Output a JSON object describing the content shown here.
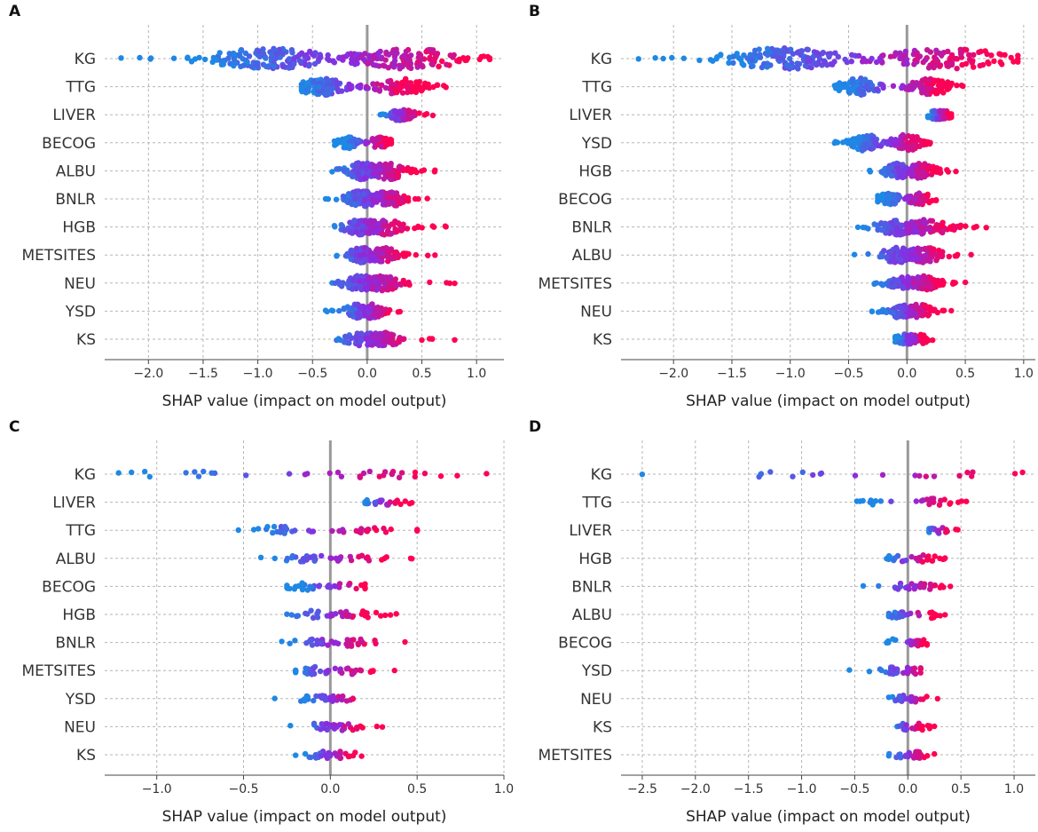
{
  "colors": {
    "low": "#1e88e5",
    "mid": "#8a2be2",
    "high": "#ff0052",
    "zero_line": "#999999",
    "grid": "#b5b5b5"
  },
  "chart_data": [
    {
      "type": "scatter",
      "panel_label": "A",
      "xlabel": "SHAP value (impact on model output)",
      "xlim": [
        -2.4,
        1.25
      ],
      "xticks": [
        -2.0,
        -1.5,
        -1.0,
        -0.5,
        0.0,
        0.5,
        1.0
      ],
      "tick_labels": [
        "−2.0",
        "−1.5",
        "−1.0",
        "−0.5",
        "0.0",
        "0.5",
        "1.0"
      ],
      "features": [
        {
          "name": "KG",
          "min": -2.25,
          "max": 1.12,
          "density": 280,
          "low_center": -0.9,
          "high_center": 0.35,
          "split": -0.2
        },
        {
          "name": "TTG",
          "min": -0.6,
          "max": 0.72,
          "density": 170,
          "low_center": -0.42,
          "high_center": 0.3,
          "split": -0.1
        },
        {
          "name": "LIVER",
          "min": 0.12,
          "max": 0.6,
          "density": 90,
          "low_center": 0.3,
          "high_center": 0.32,
          "split": 0.3
        },
        {
          "name": "BECOG",
          "min": -0.3,
          "max": 0.22,
          "density": 90,
          "low_center": -0.18,
          "high_center": 0.12,
          "split": 0.0
        },
        {
          "name": "ALBU",
          "min": -0.32,
          "max": 0.62,
          "density": 170,
          "low_center": -0.05,
          "high_center": 0.2,
          "split": 0.05
        },
        {
          "name": "BNLR",
          "min": -0.38,
          "max": 0.55,
          "density": 160,
          "low_center": -0.05,
          "high_center": 0.2,
          "split": 0.05
        },
        {
          "name": "HGB",
          "min": -0.3,
          "max": 0.72,
          "density": 150,
          "low_center": -0.05,
          "high_center": 0.15,
          "split": 0.0
        },
        {
          "name": "METSITES",
          "min": -0.28,
          "max": 0.62,
          "density": 140,
          "low_center": -0.05,
          "high_center": 0.15,
          "split": 0.0
        },
        {
          "name": "NEU",
          "min": -0.32,
          "max": 0.8,
          "density": 140,
          "low_center": -0.05,
          "high_center": 0.15,
          "split": 0.0
        },
        {
          "name": "YSD",
          "min": -0.38,
          "max": 0.3,
          "density": 130,
          "low_center": -0.1,
          "high_center": 0.05,
          "split": 0.0
        },
        {
          "name": "KS",
          "min": -0.28,
          "max": 0.8,
          "density": 120,
          "low_center": -0.03,
          "high_center": 0.15,
          "split": 0.05
        }
      ]
    },
    {
      "type": "scatter",
      "panel_label": "B",
      "xlabel": "SHAP value (impact on model output)",
      "xlim": [
        -2.45,
        1.1
      ],
      "xticks": [
        -2.0,
        -1.5,
        -1.0,
        -0.5,
        0.0,
        0.5,
        1.0
      ],
      "tick_labels": [
        "−2.0",
        "−1.5",
        "−1.0",
        "−0.5",
        "0.0",
        "0.5",
        "1.0"
      ],
      "features": [
        {
          "name": "KG",
          "min": -2.3,
          "max": 0.95,
          "density": 260,
          "low_center": -1.05,
          "high_center": 0.35,
          "split": -0.4
        },
        {
          "name": "TTG",
          "min": -0.62,
          "max": 0.48,
          "density": 160,
          "low_center": -0.4,
          "high_center": 0.2,
          "split": -0.1
        },
        {
          "name": "LIVER",
          "min": 0.18,
          "max": 0.38,
          "density": 70,
          "low_center": 0.28,
          "high_center": 0.28,
          "split": 0.28
        },
        {
          "name": "YSD",
          "min": -0.62,
          "max": 0.2,
          "density": 160,
          "low_center": -0.35,
          "high_center": 0.0,
          "split": -0.15
        },
        {
          "name": "HGB",
          "min": -0.32,
          "max": 0.42,
          "density": 140,
          "low_center": -0.08,
          "high_center": 0.12,
          "split": 0.0
        },
        {
          "name": "BECOG",
          "min": -0.25,
          "max": 0.25,
          "density": 90,
          "low_center": -0.15,
          "high_center": 0.12,
          "split": 0.0
        },
        {
          "name": "BNLR",
          "min": -0.42,
          "max": 0.68,
          "density": 150,
          "low_center": -0.08,
          "high_center": 0.2,
          "split": 0.0
        },
        {
          "name": "ALBU",
          "min": -0.45,
          "max": 0.55,
          "density": 140,
          "low_center": -0.08,
          "high_center": 0.15,
          "split": 0.0
        },
        {
          "name": "METSITES",
          "min": -0.28,
          "max": 0.5,
          "density": 130,
          "low_center": -0.05,
          "high_center": 0.15,
          "split": 0.0
        },
        {
          "name": "NEU",
          "min": -0.3,
          "max": 0.38,
          "density": 120,
          "low_center": -0.05,
          "high_center": 0.1,
          "split": 0.0
        },
        {
          "name": "KS",
          "min": -0.1,
          "max": 0.22,
          "density": 70,
          "low_center": 0.0,
          "high_center": 0.08,
          "split": 0.03
        }
      ]
    },
    {
      "type": "scatter",
      "panel_label": "C",
      "xlabel": "SHAP value (impact on model output)",
      "xlim": [
        -1.3,
        1.0
      ],
      "xticks": [
        -1.0,
        -0.5,
        0.0,
        0.5,
        1.0
      ],
      "tick_labels": [
        "−1.0",
        "−0.5",
        "0.0",
        "0.5",
        "1.0"
      ],
      "features": [
        {
          "name": "KG",
          "min": -1.22,
          "max": 0.9,
          "density": 35,
          "low_center": -0.8,
          "high_center": 0.3,
          "split": -0.2
        },
        {
          "name": "LIVER",
          "min": 0.2,
          "max": 0.47,
          "density": 22,
          "low_center": 0.3,
          "high_center": 0.33,
          "split": 0.3
        },
        {
          "name": "TTG",
          "min": -0.53,
          "max": 0.5,
          "density": 40,
          "low_center": -0.3,
          "high_center": 0.2,
          "split": -0.05
        },
        {
          "name": "ALBU",
          "min": -0.4,
          "max": 0.47,
          "density": 38,
          "low_center": -0.15,
          "high_center": 0.15,
          "split": 0.0
        },
        {
          "name": "BECOG",
          "min": -0.25,
          "max": 0.2,
          "density": 35,
          "low_center": -0.15,
          "high_center": 0.12,
          "split": 0.0
        },
        {
          "name": "HGB",
          "min": -0.25,
          "max": 0.38,
          "density": 40,
          "low_center": -0.1,
          "high_center": 0.15,
          "split": 0.0
        },
        {
          "name": "BNLR",
          "min": -0.28,
          "max": 0.43,
          "density": 40,
          "low_center": -0.1,
          "high_center": 0.15,
          "split": 0.0
        },
        {
          "name": "METSITES",
          "min": -0.2,
          "max": 0.37,
          "density": 38,
          "low_center": -0.1,
          "high_center": 0.1,
          "split": 0.0
        },
        {
          "name": "YSD",
          "min": -0.32,
          "max": 0.13,
          "density": 35,
          "low_center": -0.1,
          "high_center": 0.05,
          "split": 0.0
        },
        {
          "name": "NEU",
          "min": -0.23,
          "max": 0.3,
          "density": 35,
          "low_center": -0.05,
          "high_center": 0.08,
          "split": 0.0
        },
        {
          "name": "KS",
          "min": -0.2,
          "max": 0.18,
          "density": 30,
          "low_center": -0.05,
          "high_center": 0.08,
          "split": 0.0
        }
      ]
    },
    {
      "type": "scatter",
      "panel_label": "D",
      "xlabel": "SHAP value (impact on model output)",
      "xlim": [
        -2.7,
        1.2
      ],
      "xticks": [
        -2.5,
        -2.0,
        -1.5,
        -1.0,
        -0.5,
        0.0,
        0.5,
        1.0
      ],
      "tick_labels": [
        "−2.5",
        "−2.0",
        "−1.5",
        "−1.0",
        "−0.5",
        "0.0",
        "0.5",
        "1.0"
      ],
      "features": [
        {
          "name": "KG",
          "min": -2.5,
          "max": 1.08,
          "density": 22,
          "low_center": -1.2,
          "high_center": 0.45,
          "split": -0.4
        },
        {
          "name": "TTG",
          "min": -0.48,
          "max": 0.55,
          "density": 30,
          "low_center": -0.3,
          "high_center": 0.25,
          "split": 0.0
        },
        {
          "name": "LIVER",
          "min": 0.2,
          "max": 0.47,
          "density": 18,
          "low_center": 0.28,
          "high_center": 0.3,
          "split": 0.28
        },
        {
          "name": "HGB",
          "min": -0.2,
          "max": 0.35,
          "density": 30,
          "low_center": -0.1,
          "high_center": 0.15,
          "split": 0.0
        },
        {
          "name": "BNLR",
          "min": -0.42,
          "max": 0.4,
          "density": 32,
          "low_center": -0.05,
          "high_center": 0.15,
          "split": 0.0
        },
        {
          "name": "ALBU",
          "min": -0.18,
          "max": 0.35,
          "density": 30,
          "low_center": -0.1,
          "high_center": 0.2,
          "split": 0.0
        },
        {
          "name": "BECOG",
          "min": -0.2,
          "max": 0.18,
          "density": 25,
          "low_center": -0.15,
          "high_center": 0.1,
          "split": 0.0
        },
        {
          "name": "YSD",
          "min": -0.55,
          "max": 0.12,
          "density": 32,
          "low_center": -0.15,
          "high_center": 0.05,
          "split": -0.05
        },
        {
          "name": "NEU",
          "min": -0.18,
          "max": 0.28,
          "density": 28,
          "low_center": -0.05,
          "high_center": 0.1,
          "split": 0.0
        },
        {
          "name": "KS",
          "min": -0.1,
          "max": 0.25,
          "density": 22,
          "low_center": 0.0,
          "high_center": 0.1,
          "split": 0.0
        },
        {
          "name": "METSITES",
          "min": -0.18,
          "max": 0.25,
          "density": 25,
          "low_center": -0.05,
          "high_center": 0.1,
          "split": 0.0
        }
      ]
    }
  ]
}
